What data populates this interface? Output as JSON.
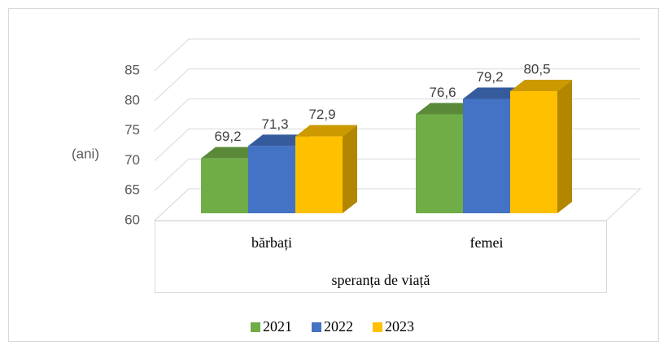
{
  "chart_data": {
    "type": "bar3d",
    "y_axis_label": "(ani)",
    "x_axis_label": "speranța de viață",
    "categories": [
      "bărbați",
      "femei"
    ],
    "series": [
      {
        "name": "2021",
        "color": "#70ad47",
        "values": [
          69.2,
          76.6
        ],
        "value_labels": [
          "69,2",
          "76,6"
        ]
      },
      {
        "name": "2022",
        "color": "#4472c4",
        "values": [
          71.3,
          79.2
        ],
        "value_labels": [
          "71,3",
          "79,2"
        ]
      },
      {
        "name": "2023",
        "color": "#ffc000",
        "values": [
          72.9,
          80.5
        ],
        "value_labels": [
          "72,9",
          "80,5"
        ]
      }
    ],
    "ylim": [
      60,
      85
    ],
    "yticks": [
      60,
      65,
      70,
      75,
      80,
      85
    ],
    "grid": true,
    "legend": "bottom"
  }
}
